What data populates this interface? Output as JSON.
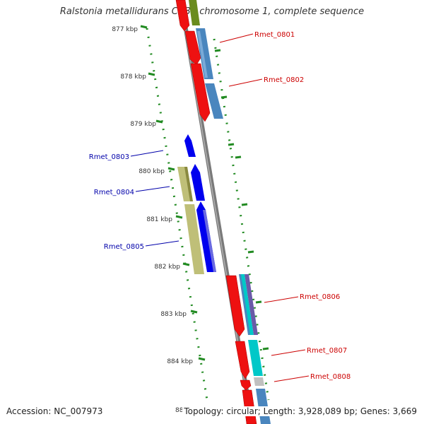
{
  "title": "Ralstonia metallidurans CH34 chromosome 1, complete sequence",
  "footer": {
    "accession": "Accession: NC_007973",
    "tick_overlap": "88",
    "topology": "Topology: circular; Length: 3,928,089 bp; Genes: 3,669"
  },
  "ticks": [
    "877 kbp",
    "878 kbp",
    "879 kbp",
    "880 kbp",
    "881 kbp",
    "882 kbp",
    "883 kbp",
    "884 kbp"
  ],
  "genes": [
    {
      "label": "Rmet_0801",
      "strand": "forward",
      "color": "#cc0000"
    },
    {
      "label": "Rmet_0802",
      "strand": "forward",
      "color": "#cc0000"
    },
    {
      "label": "Rmet_0803",
      "strand": "reverse",
      "color": "#0000aa"
    },
    {
      "label": "Rmet_0804",
      "strand": "reverse",
      "color": "#0000aa"
    },
    {
      "label": "Rmet_0805",
      "strand": "reverse",
      "color": "#0000aa"
    },
    {
      "label": "Rmet_0806",
      "strand": "forward",
      "color": "#cc0000"
    },
    {
      "label": "Rmet_0807",
      "strand": "forward",
      "color": "#cc0000"
    },
    {
      "label": "Rmet_0808",
      "strand": "forward",
      "color": "#cc0000"
    }
  ],
  "colors": {
    "forward_cds": "#ff0000",
    "reverse_cds": "#0000ff",
    "blast_hit_blue": "#4a86be",
    "blast_hit_olive": "#bfbf78",
    "blast_hit_cyan": "#00c8c8",
    "blast_hit_green": "#6a8c1e",
    "blast_hit_purple": "#6a5aa8",
    "backbone": "#7a7a7a",
    "tick_dots": "#228b22"
  }
}
